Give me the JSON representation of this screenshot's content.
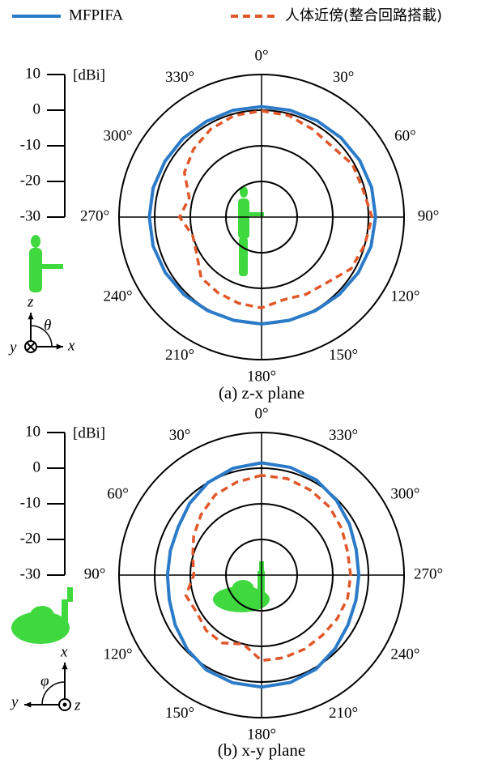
{
  "chart_data": [
    {
      "type": "polar",
      "title": "(a) z-x plane",
      "direction": "clockwise",
      "x": [
        0,
        15,
        30,
        45,
        60,
        75,
        90,
        105,
        120,
        135,
        150,
        165,
        180,
        195,
        210,
        225,
        240,
        255,
        270,
        285,
        300,
        315,
        330,
        345
      ],
      "series": [
        {
          "name": "MFPIFA",
          "color": "#2b7bc8",
          "dash": false,
          "values": [
            1,
            1,
            1.2,
            1.5,
            1.8,
            2,
            2,
            1.8,
            1.3,
            0.8,
            0.3,
            0,
            0,
            0,
            0.3,
            0.8,
            1.2,
            1.5,
            1.5,
            1.5,
            1.3,
            1.2,
            1,
            1
          ]
        },
        {
          "name": "人体近傍(整合回路搭載)",
          "color": "#e0572a",
          "dash": true,
          "values": [
            -0.2,
            -0.5,
            -1.5,
            -2,
            -0.5,
            -0.5,
            1,
            0,
            -1,
            -4,
            -5,
            -6,
            -4.5,
            -5,
            -5.5,
            -6,
            -9,
            -10,
            -7,
            -9,
            -5,
            -3,
            -1.5,
            -0.5
          ]
        }
      ],
      "rlim": [
        -30,
        10
      ],
      "rticks": [
        -30,
        -20,
        -10,
        0,
        10
      ],
      "runit": "[dBi]",
      "angle_ticks": [
        {
          "value": 0,
          "label": "0°"
        },
        {
          "value": 30,
          "label": "30°"
        },
        {
          "value": 60,
          "label": "60°"
        },
        {
          "value": 90,
          "label": "90°"
        },
        {
          "value": 120,
          "label": "120°"
        },
        {
          "value": 150,
          "label": "150°"
        },
        {
          "value": 180,
          "label": "180°"
        },
        {
          "value": 210,
          "label": "210°"
        },
        {
          "value": 240,
          "label": "240°"
        },
        {
          "value": 270,
          "label": "270°"
        },
        {
          "value": 300,
          "label": "300°"
        },
        {
          "value": 330,
          "label": "330°"
        }
      ],
      "coordinate_labels": [
        "z",
        "θ",
        "x",
        "y"
      ]
    },
    {
      "type": "polar",
      "title": "(b) x-y plane",
      "direction": "counterclockwise",
      "x": [
        0,
        15,
        30,
        45,
        60,
        75,
        90,
        105,
        120,
        135,
        150,
        165,
        180,
        195,
        210,
        225,
        240,
        255,
        270,
        285,
        300,
        315,
        330,
        345
      ],
      "series": [
        {
          "name": "MFPIFA",
          "color": "#2b7bc8",
          "dash": false,
          "values": [
            1.5,
            1,
            0,
            -1.5,
            -3,
            -3.5,
            -3.6,
            -3.2,
            -2,
            -0.5,
            0.8,
            1.3,
            1.4,
            1.2,
            0.5,
            -0.8,
            -2,
            -2.6,
            -2.7,
            -2.5,
            -1.5,
            -0.3,
            0.8,
            1.3
          ]
        },
        {
          "name": "人体近傍(整合回路搭載)",
          "color": "#e0572a",
          "dash": true,
          "values": [
            -2,
            -3,
            -4,
            -6,
            -8,
            -10,
            -11,
            -8,
            -9,
            -8,
            -8,
            -10,
            -6,
            -6,
            -6,
            -6,
            -5.5,
            -5,
            -5,
            -5,
            -4,
            -3,
            -2.5,
            -2
          ]
        }
      ],
      "rlim": [
        -30,
        10
      ],
      "rticks": [
        -30,
        -20,
        -10,
        0,
        10
      ],
      "runit": "[dBi]",
      "angle_ticks": [
        {
          "value": 0,
          "label": "0°"
        },
        {
          "value": 30,
          "label": "30°"
        },
        {
          "value": 60,
          "label": "60°"
        },
        {
          "value": 90,
          "label": "90°"
        },
        {
          "value": 120,
          "label": "120°"
        },
        {
          "value": 150,
          "label": "150°"
        },
        {
          "value": 180,
          "label": "180°"
        },
        {
          "value": 210,
          "label": "210°"
        },
        {
          "value": 240,
          "label": "240°"
        },
        {
          "value": 270,
          "label": "270°"
        },
        {
          "value": 300,
          "label": "300°"
        },
        {
          "value": 330,
          "label": "330°"
        }
      ],
      "coordinate_labels": [
        "x",
        "φ",
        "y",
        "z"
      ]
    }
  ]
}
